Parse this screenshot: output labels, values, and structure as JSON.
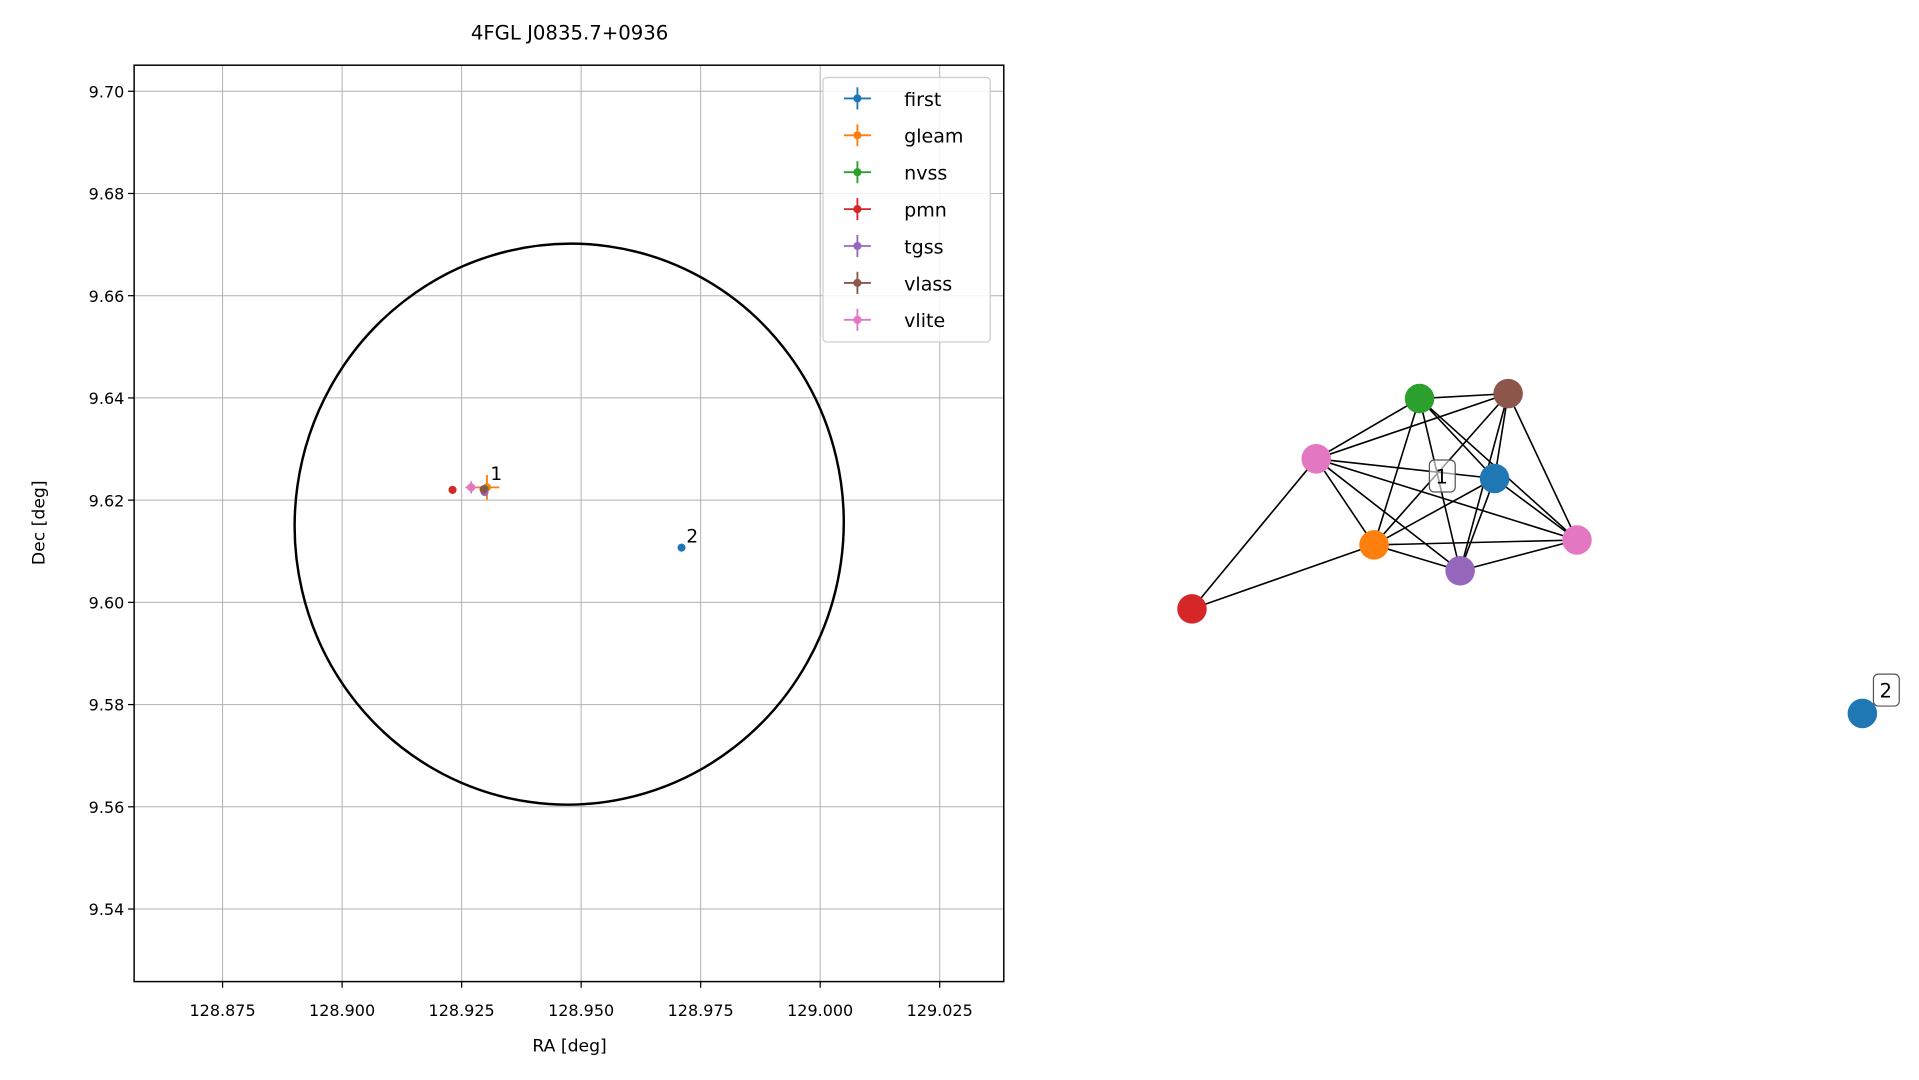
{
  "chart_data": [
    {
      "type": "scatter",
      "title": "4FGL J0835.7+0936",
      "xlabel": "RA [deg]",
      "ylabel": "Dec [deg]",
      "xlim": [
        128.8565,
        129.0384
      ],
      "ylim": [
        9.5258,
        9.7051
      ],
      "xticks": [
        128.875,
        {
          "value": 128.9,
          "label": "128.900"
        },
        128.925,
        {
          "value": 128.95,
          "label": "128.950"
        },
        128.975,
        {
          "value": 129.0,
          "label": "129.000"
        },
        129.025
      ],
      "yticks": [
        9.54,
        9.56,
        9.58,
        {
          "value": 9.6,
          "label": "9.60"
        },
        9.62,
        9.64,
        9.66,
        9.68,
        {
          "value": 9.7,
          "label": "9.70"
        }
      ],
      "grid": true,
      "legend": "upper right",
      "series": [
        {
          "name": "first",
          "color": "#1f77b4",
          "x": [
            128.971
          ],
          "values": [
            9.6107
          ],
          "xerr": [
            0.0003
          ],
          "yerr": [
            0.0003
          ]
        },
        {
          "name": "gleam",
          "color": "#ff7f0e",
          "x": [
            128.9303
          ],
          "values": [
            9.6225
          ],
          "xerr": [
            0.0026
          ],
          "yerr": [
            0.0024
          ]
        },
        {
          "name": "nvss",
          "color": "#2ca02c",
          "x": [
            128.9298
          ],
          "values": [
            9.6222
          ],
          "xerr": [
            0.0005
          ],
          "yerr": [
            0.0005
          ]
        },
        {
          "name": "pmn",
          "color": "#d62728",
          "x": [
            128.9231
          ],
          "values": [
            9.622
          ],
          "xerr": [
            0.0005
          ],
          "yerr": [
            0.0005
          ]
        },
        {
          "name": "tgss",
          "color": "#9467bd",
          "x": [
            128.9298
          ],
          "values": [
            9.6216
          ],
          "xerr": [
            0.0008
          ],
          "yerr": [
            0.0008
          ]
        },
        {
          "name": "vlass",
          "color": "#8c564b",
          "x": [
            128.9296
          ],
          "values": [
            9.6221
          ],
          "xerr": [
            0.0002
          ],
          "yerr": [
            0.0002
          ]
        },
        {
          "name": "vlite",
          "color": "#e377c2",
          "x": [
            128.927
          ],
          "values": [
            9.6225
          ],
          "xerr": [
            0.0012
          ],
          "yerr": [
            0.0012
          ]
        }
      ],
      "ellipse": {
        "center": [
          128.9475,
          9.6153
        ],
        "width": 0.1148,
        "height": 0.1098,
        "angle": 8,
        "color": "#000000"
      },
      "annotations": [
        {
          "text": "1",
          "x": 128.9305,
          "y": 9.6235
        },
        {
          "text": "2",
          "x": 128.9715,
          "y": 9.6112
        }
      ]
    },
    {
      "type": "network",
      "nodes": [
        {
          "color": "#2ca02c"
        },
        {
          "color": "#8c564b"
        },
        {
          "color": "#e377c2"
        },
        {
          "color": "#1f77b4"
        },
        {
          "color": "#ff7f0e"
        },
        {
          "color": "#9467bd"
        },
        {
          "color": "#e377c2"
        },
        {
          "color": "#d62728"
        },
        {
          "color": "#1f77b4"
        }
      ],
      "edges": [
        [
          0,
          1
        ],
        [
          0,
          2
        ],
        [
          0,
          3
        ],
        [
          0,
          4
        ],
        [
          0,
          5
        ],
        [
          0,
          6
        ],
        [
          1,
          2
        ],
        [
          1,
          3
        ],
        [
          1,
          4
        ],
        [
          1,
          5
        ],
        [
          1,
          6
        ],
        [
          2,
          3
        ],
        [
          2,
          4
        ],
        [
          2,
          5
        ],
        [
          2,
          6
        ],
        [
          3,
          4
        ],
        [
          3,
          5
        ],
        [
          3,
          6
        ],
        [
          4,
          5
        ],
        [
          4,
          6
        ],
        [
          5,
          6
        ],
        [
          7,
          2
        ],
        [
          7,
          4
        ]
      ],
      "labels": [
        {
          "text": "1"
        },
        {
          "text": "2"
        }
      ]
    }
  ]
}
